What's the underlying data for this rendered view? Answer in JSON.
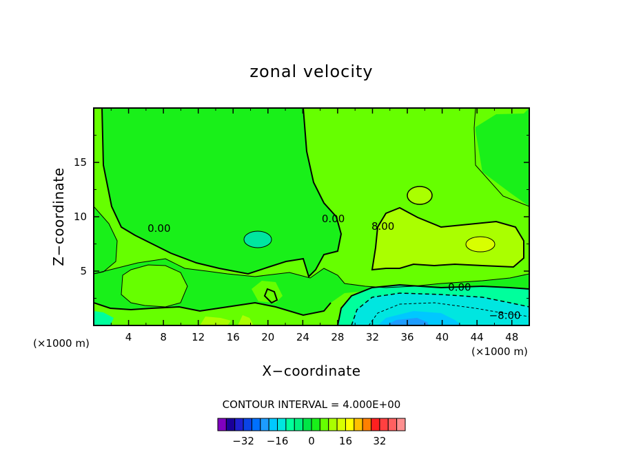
{
  "chart_data": {
    "type": "heatmap",
    "title": "zonal velocity",
    "xlabel": "X−coordinate",
    "ylabel": "Z−coordinate",
    "x_units": "(×1000 m)",
    "y_units": "(×1000 m)",
    "xlim": [
      0,
      50
    ],
    "ylim": [
      0,
      20
    ],
    "x_ticks": [
      "4",
      "8",
      "12",
      "16",
      "20",
      "24",
      "28",
      "32",
      "36",
      "40",
      "44",
      "48"
    ],
    "y_ticks": [
      "5",
      "10",
      "15"
    ],
    "contour_interval_label": "CONTOUR INTERVAL = 4.000E+00",
    "contour_labels": [
      {
        "text": "0.00",
        "x": 7.5,
        "z": 8.6
      },
      {
        "text": "0.00",
        "x": 27.5,
        "z": 9.5
      },
      {
        "text": "8.00",
        "x": 33.2,
        "z": 8.8
      },
      {
        "text": "0.00",
        "x": 42,
        "z": 3.2
      },
      {
        "text": "−8.00",
        "x": 47.2,
        "z": 0.6
      }
    ],
    "colorbar": {
      "levels": [
        -40,
        -36,
        -32,
        -28,
        -24,
        -20,
        -16,
        -12,
        -8,
        -4,
        0,
        4,
        8,
        12,
        16,
        20,
        24,
        28,
        32,
        36,
        40
      ],
      "colors": [
        "#8000c0",
        "#1a0099",
        "#1f1fd0",
        "#0a44e6",
        "#0070ff",
        "#1d9cff",
        "#00c8ff",
        "#00e6e0",
        "#00ff9c",
        "#00f080",
        "#00e646",
        "#19f019",
        "#66ff00",
        "#aaff00",
        "#d8ff00",
        "#ffff00",
        "#ffc000",
        "#ff8000",
        "#ff2020",
        "#ff4040",
        "#ff6060",
        "#ff9090"
      ],
      "tick_labels": [
        "−32",
        "−16",
        "0",
        "16",
        "32"
      ],
      "tick_values": [
        -32,
        -16,
        0,
        16,
        32
      ]
    },
    "fields": {
      "background": "#66ff00",
      "colors_by_level": {
        "-8": "#00ff9c",
        "-4": "#19f019",
        "0": "#00e646",
        "4": "#66ff00",
        "8": "#aaff00",
        "12": "#d8ff00",
        "16": "#ffff00",
        "-12": "#00e6e0",
        "-16": "#00c8ff",
        "-20": "#1d9cff",
        "-24": "#0070ff"
      }
    }
  }
}
